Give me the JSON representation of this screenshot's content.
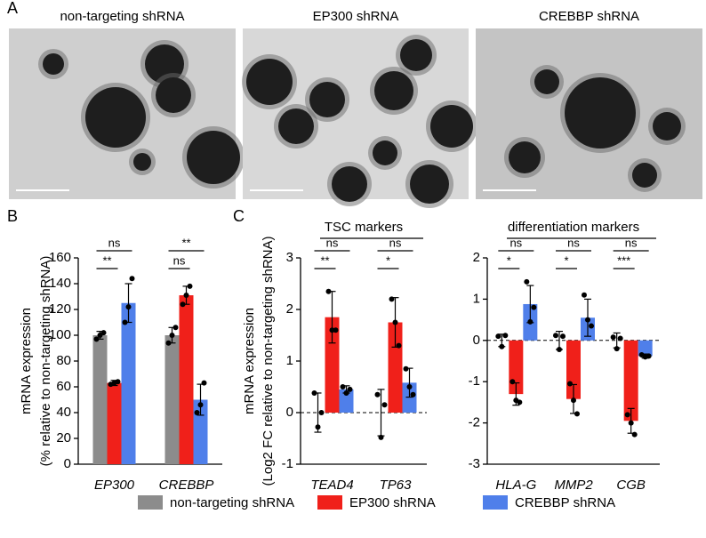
{
  "panel_labels": [
    "A",
    "B",
    "C"
  ],
  "images": [
    {
      "title": "non-targeting shRNA"
    },
    {
      "title": "EP300 shRNA"
    },
    {
      "title": "CREBBP shRNA"
    }
  ],
  "chart_data": [
    {
      "type": "bar",
      "ylabel": [
        "mRNA expression",
        "(% relative to non-targeting shRNA)"
      ],
      "categories": [
        "EP300",
        "CREBBP"
      ],
      "ylim": [
        0,
        160
      ],
      "yticks": [
        0,
        20,
        40,
        60,
        80,
        100,
        120,
        140,
        160
      ],
      "series": [
        {
          "name": "non-targeting shRNA",
          "color": "#8c8c8c",
          "values": [
            100,
            100
          ],
          "errors": [
            3,
            6
          ],
          "points": [
            [
              97,
              100,
              102
            ],
            [
              94,
              100,
              106
            ]
          ]
        },
        {
          "name": "EP300 shRNA",
          "color": "#f0201a",
          "values": [
            63,
            131
          ],
          "errors": [
            2,
            7
          ],
          "points": [
            [
              62,
              63,
              64
            ],
            [
              124,
              131,
              138
            ]
          ],
          "significance": [
            "**",
            "ns"
          ]
        },
        {
          "name": "CREBBP shRNA",
          "color": "#4f7fea",
          "values": [
            125,
            50
          ],
          "errors": [
            15,
            12
          ],
          "points": [
            [
              110,
              122,
              144
            ],
            [
              40,
              46,
              63
            ]
          ],
          "significance": [
            "ns",
            "**"
          ]
        }
      ]
    },
    {
      "type": "bar",
      "title": "TSC markers",
      "ylabel": [
        "mRNA expression",
        "(Log2 FC relative to non-targeting shRNA)"
      ],
      "categories": [
        "TEAD4",
        "TP63"
      ],
      "ylim": [
        -1,
        3
      ],
      "yticks": [
        -1,
        0,
        1,
        2,
        3
      ],
      "zero_line": true,
      "series": [
        {
          "name": "non-targeting shRNA",
          "color": "#8c8c8c",
          "values": [
            0,
            0
          ],
          "errors": [
            0.38,
            0.45
          ],
          "points": [
            [
              0.38,
              -0.28,
              0
            ],
            [
              0.35,
              -0.48,
              0.15
            ]
          ]
        },
        {
          "name": "EP300 shRNA",
          "color": "#f0201a",
          "values": [
            1.85,
            1.75
          ],
          "errors": [
            0.5,
            0.48
          ],
          "points": [
            [
              2.35,
              1.6,
              1.6
            ],
            [
              2.2,
              1.75,
              1.3
            ]
          ],
          "significance": [
            "**",
            "*"
          ]
        },
        {
          "name": "CREBBP shRNA",
          "color": "#4f7fea",
          "values": [
            0.45,
            0.58
          ],
          "errors": [
            0.07,
            0.28
          ],
          "points": [
            [
              0.5,
              0.38,
              0.45
            ],
            [
              0.85,
              0.5,
              0.35
            ]
          ],
          "significance": [
            "ns",
            "ns"
          ]
        }
      ]
    },
    {
      "type": "bar",
      "title": "differentiation markers",
      "categories": [
        "HLA-G",
        "MMP2",
        "CGB"
      ],
      "ylim": [
        -3,
        2
      ],
      "yticks": [
        -3,
        -2,
        -1,
        0,
        1,
        2
      ],
      "zero_line": true,
      "series": [
        {
          "name": "non-targeting shRNA",
          "color": "#8c8c8c",
          "values": [
            0,
            0,
            0
          ],
          "errors": [
            0.15,
            0.22,
            0.18
          ],
          "points": [
            [
              0.1,
              -0.15,
              0.12
            ],
            [
              0.12,
              -0.22,
              0.1
            ],
            [
              0.08,
              -0.2,
              0.05
            ]
          ]
        },
        {
          "name": "EP300 shRNA",
          "color": "#f0201a",
          "values": [
            -1.3,
            -1.42,
            -1.95
          ],
          "errors": [
            0.27,
            0.35,
            0.3
          ],
          "points": [
            [
              -1.0,
              -1.45,
              -1.5
            ],
            [
              -1.05,
              -1.45,
              -1.78
            ],
            [
              -1.8,
              -2.0,
              -2.28
            ]
          ],
          "significance": [
            "*",
            "*",
            "***"
          ]
        },
        {
          "name": "CREBBP shRNA",
          "color": "#4f7fea",
          "values": [
            0.88,
            0.55,
            -0.38
          ],
          "errors": [
            0.45,
            0.45,
            0.05
          ],
          "points": [
            [
              1.42,
              0.45,
              0.8
            ],
            [
              1.1,
              0.5,
              0.35
            ],
            [
              -0.35,
              -0.4,
              -0.38
            ]
          ],
          "significance": [
            "ns",
            "ns",
            "ns"
          ]
        }
      ]
    }
  ]
}
